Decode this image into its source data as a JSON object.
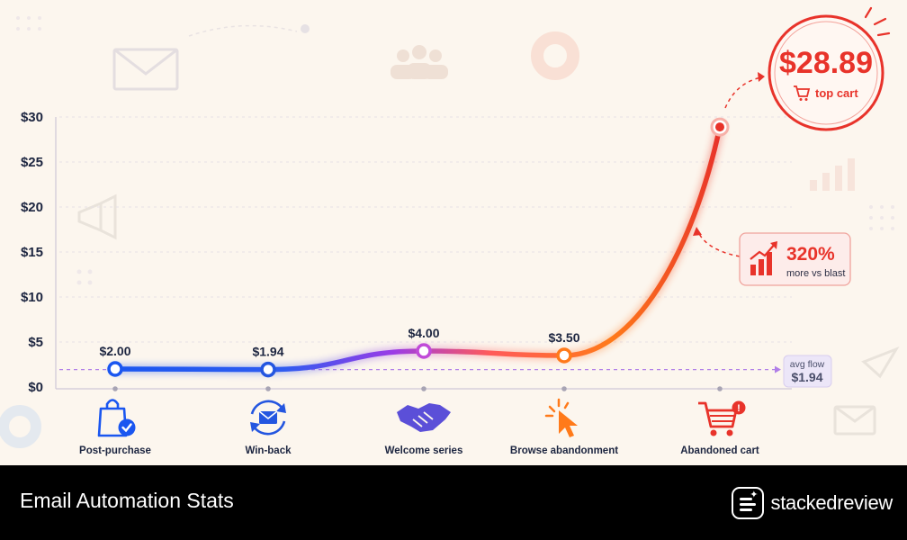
{
  "footer": {
    "title": "Email Automation Stats",
    "brand": "stackedreview"
  },
  "callouts": {
    "top": {
      "value": "$28.89",
      "label": "top cart",
      "icon": "cart-icon"
    },
    "growth": {
      "value": "320%",
      "label": "more vs blast",
      "icon": "bar-growth-icon"
    },
    "avg": {
      "label": "avg flow",
      "value": "$1.94"
    }
  },
  "colors": {
    "start": "#1a56f0",
    "mid": "#9b3be6",
    "orange": "#ff7a1a",
    "end": "#e8332a",
    "ink": "#1c2540",
    "avg_line": "#b07ee8"
  },
  "chart_data": {
    "type": "line",
    "categories": [
      "Post-purchase",
      "Win-back",
      "Welcome series",
      "Browse abandonment",
      "Abandoned cart"
    ],
    "category_icons": [
      "shopping-bag-check-icon",
      "refresh-mail-icon",
      "handshake-icon",
      "cursor-click-icon",
      "cart-alert-icon"
    ],
    "values": [
      2.0,
      1.94,
      4.0,
      3.5,
      28.89
    ],
    "point_labels": [
      "$2.00",
      "$1.94",
      "$4.00",
      "$3.50",
      ""
    ],
    "yticks": [
      "$0",
      "$5",
      "$10",
      "$15",
      "$20",
      "$25",
      "$30"
    ],
    "ylim": [
      0,
      30
    ],
    "reference_line": 1.94,
    "grid": true
  }
}
